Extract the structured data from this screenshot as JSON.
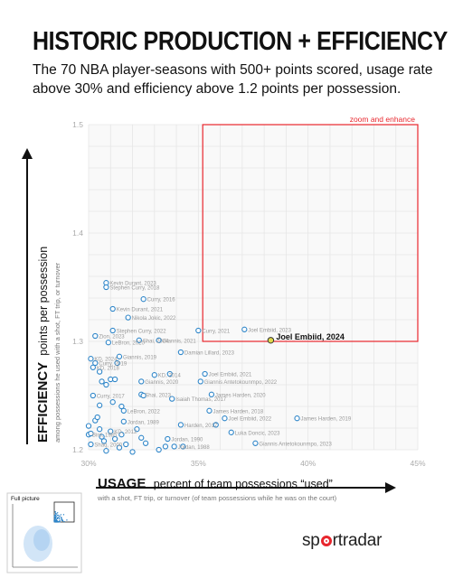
{
  "title": "HISTORIC PRODUCTION + EFFICIENCY",
  "subtitle": "The 70 NBA player-seasons with 500+ points scored, usage rate above 30% and efficiency above 1.2 points per possession.",
  "brand": {
    "prefix": "sp",
    "suffix": "rtradar"
  },
  "inset": {
    "label": "Full picture"
  },
  "chart_data": {
    "type": "scatter",
    "title": "HISTORIC PRODUCTION + EFFICIENCY",
    "xlabel": "USAGE percent of team possessions “used”",
    "xlabel_big": "USAGE",
    "xlabel_rest": "percent of team possessions “used”",
    "xsublabel": "with a shot, FT trip, or turnover (of team possessions while he was on the court)",
    "ylabel": "EFFICIENCY points per possession",
    "ylabel_big": "EFFICIENCY",
    "ylabel_rest": "points per possession",
    "ysublabel": "among possessions he used with a shot, FT trip, or turnover",
    "xlim": [
      30,
      45
    ],
    "ylim": [
      1.2,
      1.5
    ],
    "xticks": [
      {
        "v": 30,
        "label": "30%"
      },
      {
        "v": 35,
        "label": "35%"
      },
      {
        "v": 40,
        "label": "40%"
      },
      {
        "v": 45,
        "label": "45%"
      }
    ],
    "yticks": [
      {
        "v": 1.2,
        "label": "1.2"
      },
      {
        "v": 1.3,
        "label": "1.3"
      },
      {
        "v": 1.4,
        "label": "1.4"
      },
      {
        "v": 1.5,
        "label": "1.5"
      }
    ],
    "grid": true,
    "zoom_box": {
      "x": [
        35.2,
        45
      ],
      "y": [
        1.3,
        1.5
      ],
      "label": "zoom and enhance",
      "color": "#e8262d"
    },
    "highlight": {
      "label": "Joel Embiid, 2024",
      "x": 38.3,
      "y": 1.301,
      "color": "#e0d84a"
    },
    "points": [
      {
        "x": 30.8,
        "y": 1.354,
        "label": "Kevin Durant, 2023"
      },
      {
        "x": 30.8,
        "y": 1.35,
        "label": "Stephen Curry, 2018"
      },
      {
        "x": 32.5,
        "y": 1.339,
        "label": "Curry, 2016"
      },
      {
        "x": 31.1,
        "y": 1.33,
        "label": "Kevin Durant, 2021"
      },
      {
        "x": 31.8,
        "y": 1.322,
        "label": "Nikola Jokic, 2022"
      },
      {
        "x": 31.1,
        "y": 1.31,
        "label": "Stephen Curry, 2022"
      },
      {
        "x": 35.0,
        "y": 1.31,
        "label": "Curry, 2021"
      },
      {
        "x": 37.1,
        "y": 1.311,
        "label": "Joel Embiid, 2023"
      },
      {
        "x": 30.3,
        "y": 1.305,
        "label": "Zion, 2023"
      },
      {
        "x": 32.3,
        "y": 1.301,
        "label": "Shai, 2024"
      },
      {
        "x": 33.2,
        "y": 1.301,
        "label": "Giannis, 2021"
      },
      {
        "x": 30.9,
        "y": 1.299,
        "label": "LeBron, 2020"
      },
      {
        "x": 34.2,
        "y": 1.29,
        "label": "Damian Lillard, 2023"
      },
      {
        "x": 30.1,
        "y": 1.284,
        "label": "KD, 2024"
      },
      {
        "x": 31.4,
        "y": 1.286,
        "label": "Giannis, 2019"
      },
      {
        "x": 30.3,
        "y": 1.28,
        "label": "Curry, 2019"
      },
      {
        "x": 30.2,
        "y": 1.276,
        "label": "KD, 2018"
      },
      {
        "x": 33.0,
        "y": 1.269,
        "label": "KD, 2014"
      },
      {
        "x": 35.3,
        "y": 1.27,
        "label": "Joel Embiid, 2021"
      },
      {
        "x": 32.4,
        "y": 1.263,
        "label": "Giannis, 2020"
      },
      {
        "x": 35.1,
        "y": 1.263,
        "label": "Giannis Antetokounmpo, 2022"
      },
      {
        "x": 32.4,
        "y": 1.251,
        "label": "Shai, 2023"
      },
      {
        "x": 35.6,
        "y": 1.251,
        "label": "James Harden, 2020"
      },
      {
        "x": 30.2,
        "y": 1.25,
        "label": "Curry, 2017"
      },
      {
        "x": 33.8,
        "y": 1.247,
        "label": "Isaiah Thomas, 2017"
      },
      {
        "x": 35.5,
        "y": 1.236,
        "label": "James Harden, 2018"
      },
      {
        "x": 31.6,
        "y": 1.236,
        "label": "LeBron, 2022"
      },
      {
        "x": 36.2,
        "y": 1.229,
        "label": "Joel Embiid, 2022"
      },
      {
        "x": 39.5,
        "y": 1.229,
        "label": "James Harden, 2019"
      },
      {
        "x": 31.6,
        "y": 1.226,
        "label": "Jordan, 1989"
      },
      {
        "x": 34.2,
        "y": 1.223,
        "label": "Harden, 2017"
      },
      {
        "x": 36.5,
        "y": 1.216,
        "label": "Luka Doncic, 2023"
      },
      {
        "x": 30.0,
        "y": 1.214,
        "label": "Bird, 1985"
      },
      {
        "x": 31.0,
        "y": 1.217,
        "label": "KD, 2012"
      },
      {
        "x": 33.6,
        "y": 1.21,
        "label": "Jordan, 1990"
      },
      {
        "x": 37.6,
        "y": 1.206,
        "label": "Giannis Antetokounmpo, 2023"
      },
      {
        "x": 30.1,
        "y": 1.205,
        "label": "Shaq, 2000"
      },
      {
        "x": 33.9,
        "y": 1.203,
        "label": "Jordan, 1988"
      },
      {
        "x": 30.0,
        "y": 1.222,
        "label": ""
      },
      {
        "x": 30.1,
        "y": 1.215,
        "label": ""
      },
      {
        "x": 30.3,
        "y": 1.227,
        "label": ""
      },
      {
        "x": 30.4,
        "y": 1.23,
        "label": ""
      },
      {
        "x": 30.5,
        "y": 1.219,
        "label": ""
      },
      {
        "x": 30.6,
        "y": 1.212,
        "label": ""
      },
      {
        "x": 30.7,
        "y": 1.208,
        "label": ""
      },
      {
        "x": 30.8,
        "y": 1.199,
        "label": ""
      },
      {
        "x": 31.2,
        "y": 1.21,
        "label": ""
      },
      {
        "x": 31.4,
        "y": 1.202,
        "label": ""
      },
      {
        "x": 31.5,
        "y": 1.214,
        "label": ""
      },
      {
        "x": 31.7,
        "y": 1.205,
        "label": ""
      },
      {
        "x": 32.0,
        "y": 1.198,
        "label": ""
      },
      {
        "x": 32.2,
        "y": 1.219,
        "label": ""
      },
      {
        "x": 32.4,
        "y": 1.211,
        "label": ""
      },
      {
        "x": 32.6,
        "y": 1.206,
        "label": ""
      },
      {
        "x": 33.2,
        "y": 1.2,
        "label": ""
      },
      {
        "x": 33.5,
        "y": 1.203,
        "label": ""
      },
      {
        "x": 34.3,
        "y": 1.203,
        "label": ""
      },
      {
        "x": 31.0,
        "y": 1.265,
        "label": ""
      },
      {
        "x": 30.6,
        "y": 1.263,
        "label": ""
      },
      {
        "x": 32.5,
        "y": 1.25,
        "label": ""
      },
      {
        "x": 31.1,
        "y": 1.244,
        "label": ""
      },
      {
        "x": 31.5,
        "y": 1.24,
        "label": ""
      },
      {
        "x": 30.5,
        "y": 1.241,
        "label": ""
      },
      {
        "x": 30.8,
        "y": 1.26,
        "label": ""
      },
      {
        "x": 31.2,
        "y": 1.265,
        "label": ""
      },
      {
        "x": 33.7,
        "y": 1.27,
        "label": ""
      },
      {
        "x": 35.8,
        "y": 1.223,
        "label": ""
      },
      {
        "x": 31.3,
        "y": 1.28,
        "label": ""
      },
      {
        "x": 30.5,
        "y": 1.272,
        "label": ""
      }
    ]
  }
}
